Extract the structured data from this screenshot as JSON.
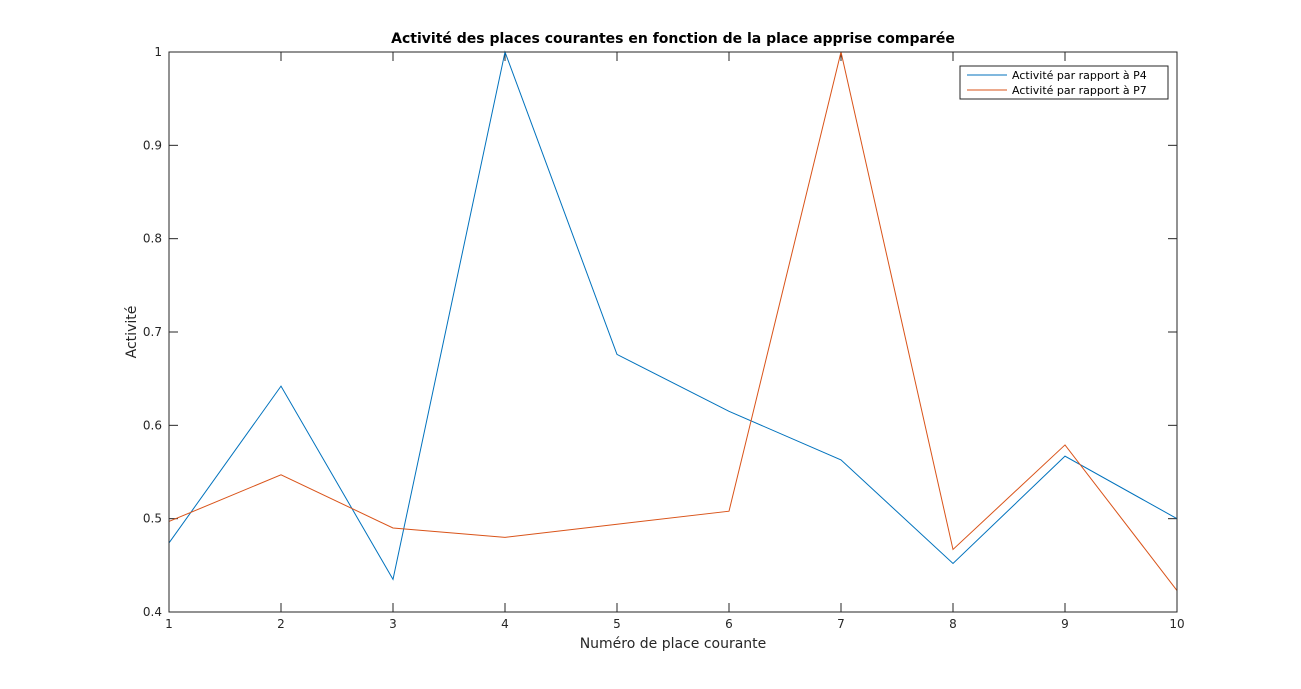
{
  "chart_data": {
    "type": "line",
    "title": "Activité des places courantes en fonction de la place apprise comparée",
    "xlabel": "Numéro de place courante",
    "ylabel": "Activité",
    "xlim": [
      1,
      10
    ],
    "ylim": [
      0.4,
      1
    ],
    "x": [
      1,
      2,
      3,
      4,
      5,
      6,
      7,
      8,
      9,
      10
    ],
    "x_ticks": [
      "1",
      "2",
      "3",
      "4",
      "5",
      "6",
      "7",
      "8",
      "9",
      "10"
    ],
    "y_tick_values": [
      0.4,
      0.5,
      0.6,
      0.7,
      0.8,
      0.9,
      1
    ],
    "y_ticks": [
      "0.4",
      "0.5",
      "0.6",
      "0.7",
      "0.8",
      "0.9",
      "1"
    ],
    "grid": false,
    "legend_position": "top-right",
    "series": [
      {
        "name": "Activité par rapport à P4",
        "color": "#0072BD",
        "values": [
          0.474,
          0.642,
          0.435,
          1.0,
          0.676,
          0.615,
          0.563,
          0.452,
          0.567,
          0.5
        ]
      },
      {
        "name": "Activité par rapport à P7",
        "color": "#D95319",
        "values": [
          0.497,
          0.547,
          0.49,
          0.48,
          0.494,
          0.508,
          1.0,
          0.467,
          0.579,
          0.423
        ]
      }
    ]
  }
}
